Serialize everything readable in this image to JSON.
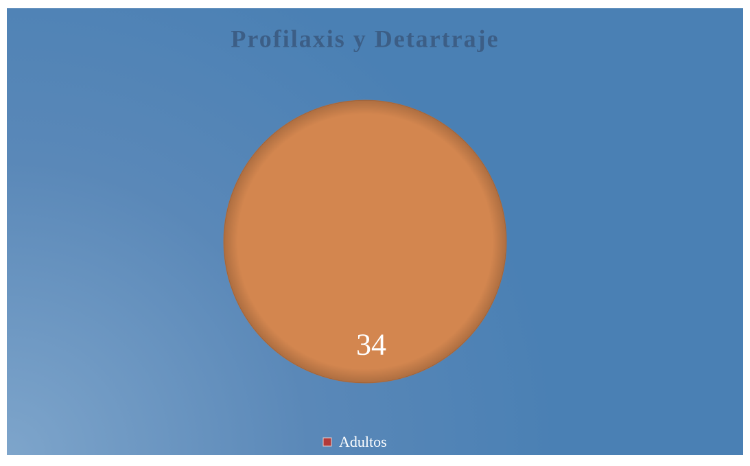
{
  "chart_data": {
    "type": "pie",
    "title": "Profilaxis y Detartraje",
    "categories": [
      "Adultos"
    ],
    "values": [
      34
    ],
    "colors": [
      "#d3864f"
    ],
    "legend_colors": [
      "#b23a3a"
    ],
    "legend": "bottom",
    "data_labels": true
  }
}
